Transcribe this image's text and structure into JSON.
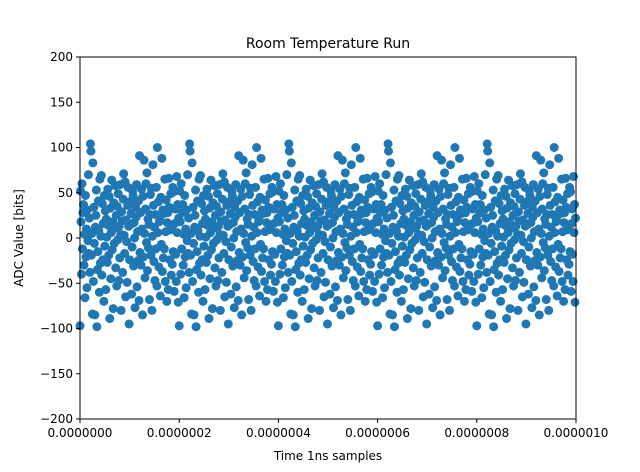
{
  "chart_data": {
    "type": "scatter",
    "title": "Room Temperature Run",
    "xlabel": "Time 1ns samples",
    "ylabel": "ADC Value [bits]",
    "xlim": [
      0,
      1e-06
    ],
    "ylim": [
      -200,
      200
    ],
    "x_ticks": [
      "0.0000000",
      "0.0000002",
      "0.0000004",
      "0.0000006",
      "0.0000008",
      "0.0000010"
    ],
    "x_tick_values": [
      0,
      2e-07,
      4e-07,
      6e-07,
      8e-07,
      1e-06
    ],
    "y_ticks": [
      "200",
      "150",
      "100",
      "50",
      "0",
      "−50",
      "−100",
      "−150",
      "−200"
    ],
    "y_tick_values": [
      200,
      150,
      100,
      50,
      0,
      -50,
      -100,
      -150,
      -200
    ],
    "grid": false,
    "color": "#1f77b4",
    "x_step": 1e-09,
    "values": [
      -97,
      52,
      18,
      -40,
      60,
      -12,
      28,
      37,
      -30,
      4,
      -66,
      47,
      -21,
      10,
      -55,
      31,
      -3,
      70,
      -17,
      22,
      -38,
      104,
      96,
      -19,
      5,
      -84,
      83,
      -48,
      34,
      -6,
      -85,
      12,
      25,
      53,
      -98,
      -35,
      -15,
      41,
      8,
      -60,
      65,
      -28,
      2,
      69,
      -41,
      38,
      -24,
      16,
      -70,
      47,
      -9,
      30,
      -57,
      21,
      1,
      -27,
      54,
      14,
      -19,
      46,
      -89,
      33,
      -45,
      6,
      64,
      -13,
      18,
      -78,
      39,
      -6,
      11,
      58,
      -33,
      25,
      -53,
      35,
      -2,
      49,
      -47,
      13,
      -22,
      59,
      4,
      -80,
      29,
      19,
      -38,
      43,
      71,
      3,
      -17,
      62,
      -65,
      20,
      -4,
      -49,
      36,
      56,
      13,
      -95,
      -24,
      40,
      15,
      27,
      -62,
      -10,
      52,
      47,
      -31,
      17,
      0,
      -77,
      34,
      23,
      59,
      -54,
      7,
      -25,
      41,
      -69,
      91,
      -16,
      28,
      -30,
      54,
      10,
      -85,
      46,
      -21,
      86,
      5,
      -44,
      32,
      60,
      -5,
      72,
      -36,
      21,
      -11,
      15,
      -68,
      26,
      48,
      -19,
      55,
      -80,
      2,
      81,
      36,
      -26,
      12,
      -47,
      26,
      -12,
      56,
      -53,
      100,
      6,
      40,
      -32,
      18,
      20,
      -64,
      45,
      -7,
      88,
      -37,
      31,
      -22,
      27,
      -12,
      65,
      -48,
      7,
      42,
      -70,
      17,
      28,
      -57,
      66,
      34,
      -24,
      9,
      49,
      -41,
      13,
      -29,
      56,
      -15,
      51,
      -59,
      16,
      32,
      -18,
      -48,
      68,
      6,
      37,
      -71,
      22
    ]
  }
}
